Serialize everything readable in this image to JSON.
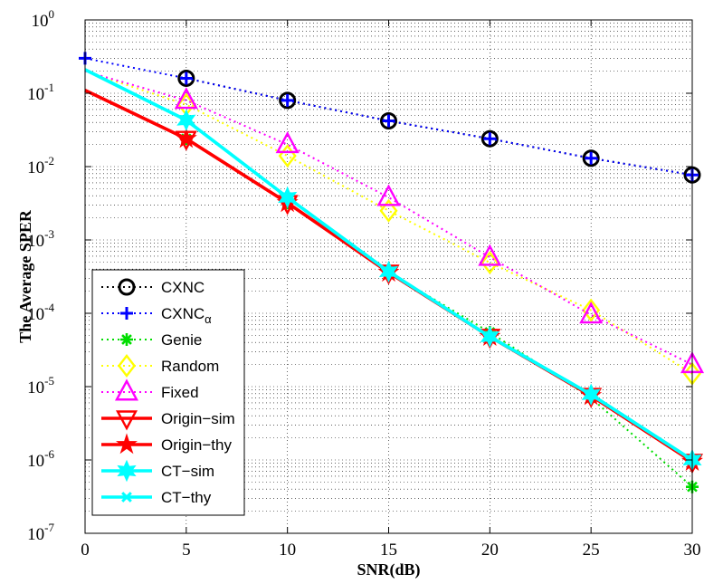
{
  "chart_data": {
    "type": "line",
    "xlabel": "SNR(dB)",
    "ylabel": "The Average SPER",
    "xlim": [
      0,
      30
    ],
    "ylim": [
      1e-07,
      1
    ],
    "yscale": "log",
    "grid": true,
    "legend_position": "bottom-left",
    "x_ticks": [
      "0",
      "5",
      "10",
      "15",
      "20",
      "25",
      "30"
    ],
    "y_ticks": [
      {
        "base": "10",
        "exp": "0"
      },
      {
        "base": "10",
        "exp": "-1"
      },
      {
        "base": "10",
        "exp": "-2"
      },
      {
        "base": "10",
        "exp": "-3"
      },
      {
        "base": "10",
        "exp": "-4"
      },
      {
        "base": "10",
        "exp": "-5"
      },
      {
        "base": "10",
        "exp": "-6"
      },
      {
        "base": "10",
        "exp": "-7"
      }
    ],
    "series": [
      {
        "name": "CXNC",
        "color": "#000000",
        "line": "dotted",
        "marker": "circle",
        "x": [
          5,
          10,
          15,
          20,
          25,
          30
        ],
        "values": [
          0.16,
          0.08,
          0.042,
          0.024,
          0.013,
          0.0077
        ]
      },
      {
        "name": "CXNC",
        "subscript": "α",
        "color": "#0000ff",
        "line": "dotted",
        "marker": "plus",
        "x": [
          0,
          5,
          10,
          15,
          20,
          25,
          30
        ],
        "values": [
          0.3,
          0.16,
          0.08,
          0.042,
          0.024,
          0.013,
          0.0077
        ]
      },
      {
        "name": "Genie",
        "color": "#00dd00",
        "line": "dotted",
        "marker": "asterisk",
        "x": [
          0,
          5,
          10,
          15,
          20,
          25,
          30
        ],
        "values": [
          0.11,
          0.024,
          0.0032,
          0.00036,
          5.5e-05,
          7e-06,
          4.3e-07
        ]
      },
      {
        "name": "Random",
        "color": "#ffff00",
        "line": "dotted",
        "marker": "diamond",
        "x": [
          0,
          5,
          10,
          15,
          20,
          25,
          30
        ],
        "values": [
          0.2,
          0.07,
          0.014,
          0.0025,
          0.00049,
          0.00011,
          1.5e-05
        ]
      },
      {
        "name": "Fixed",
        "color": "#ff00ff",
        "line": "dotted",
        "marker": "triangle-up",
        "x": [
          0,
          5,
          10,
          15,
          20,
          25,
          30
        ],
        "values": [
          0.2,
          0.08,
          0.02,
          0.0038,
          0.00058,
          9.5e-05,
          2e-05
        ]
      },
      {
        "name": "Origin−sim",
        "color": "#ff0000",
        "line": "solid",
        "marker": "triangle-down",
        "x": [
          0,
          5,
          10,
          15,
          20,
          25,
          30
        ],
        "values": [
          0.11,
          0.024,
          0.0032,
          0.00036,
          4.8e-05,
          7.5e-06,
          9.5e-07
        ]
      },
      {
        "name": "Origin−thy",
        "color": "#ff0000",
        "line": "solid",
        "marker": "star",
        "x": [
          0,
          5,
          10,
          15,
          20,
          25,
          30
        ],
        "values": [
          0.11,
          0.024,
          0.0032,
          0.00036,
          4.8e-05,
          7.5e-06,
          9.5e-07
        ]
      },
      {
        "name": "CT−sim",
        "color": "#00ffff",
        "line": "solid",
        "marker": "hexagram",
        "x": [
          0,
          5,
          10,
          15,
          20,
          25,
          30
        ],
        "values": [
          0.21,
          0.043,
          0.0038,
          0.00037,
          4.8e-05,
          7.8e-06,
          1e-06
        ]
      },
      {
        "name": "CT−thy",
        "color": "#00ffff",
        "line": "solid",
        "marker": "x",
        "x": [
          0,
          5,
          10,
          15,
          20,
          25,
          30
        ],
        "values": [
          0.21,
          0.043,
          0.0038,
          0.00037,
          4.8e-05,
          7.8e-06,
          1e-06
        ]
      }
    ]
  }
}
